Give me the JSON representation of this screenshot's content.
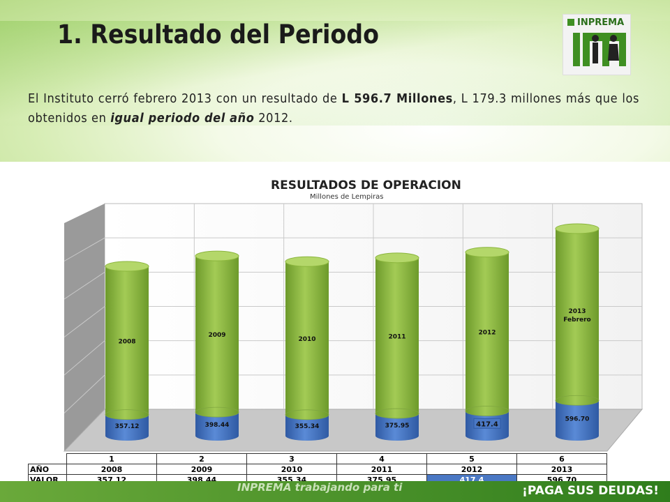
{
  "slide": {
    "title": "1. Resultado del Periodo",
    "paragraph": {
      "p1": "El Instituto cerró febrero 2013 con un resultado de ",
      "p2": "L 596.7 Millones",
      "p3": ", L 179.3 millones más que los obtenidos en ",
      "p4": "igual periodo del año",
      "p5": " 2012."
    },
    "logo_text": "INPREMA",
    "footer_slogan": "INPREMA trabajando para ti",
    "footer_right": "¡PAGA SUS DEUDAS!"
  },
  "chart_data": {
    "type": "bar",
    "title": "RESULTADOS DE OPERACION",
    "subtitle": "Millones de Lempiras",
    "categories": [
      "1",
      "2",
      "3",
      "4",
      "5",
      "6"
    ],
    "cylinder_labels": [
      "2008",
      "2009",
      "2010",
      "2011",
      "2012",
      "2013 Febrero"
    ],
    "values": [
      357.12,
      398.44,
      355.34,
      375.95,
      417.4,
      596.7
    ],
    "value_labels": [
      "357.12",
      "398.44",
      "355.34",
      "375.95",
      "417.4",
      "596.70"
    ],
    "table": {
      "row_labels": [
        "AÑO",
        "VALOR"
      ],
      "years": [
        "2008",
        "2009",
        "2010",
        "2011",
        "2012",
        "2013"
      ],
      "valores": [
        "357.12",
        "398.44",
        "355.34",
        "375.95",
        "417.4",
        "596.70"
      ]
    },
    "colors": {
      "bottom": "#3f6fbf",
      "top": "#8ab53c",
      "highlight": "#4a78c4"
    },
    "grid": true,
    "legend": "none"
  }
}
